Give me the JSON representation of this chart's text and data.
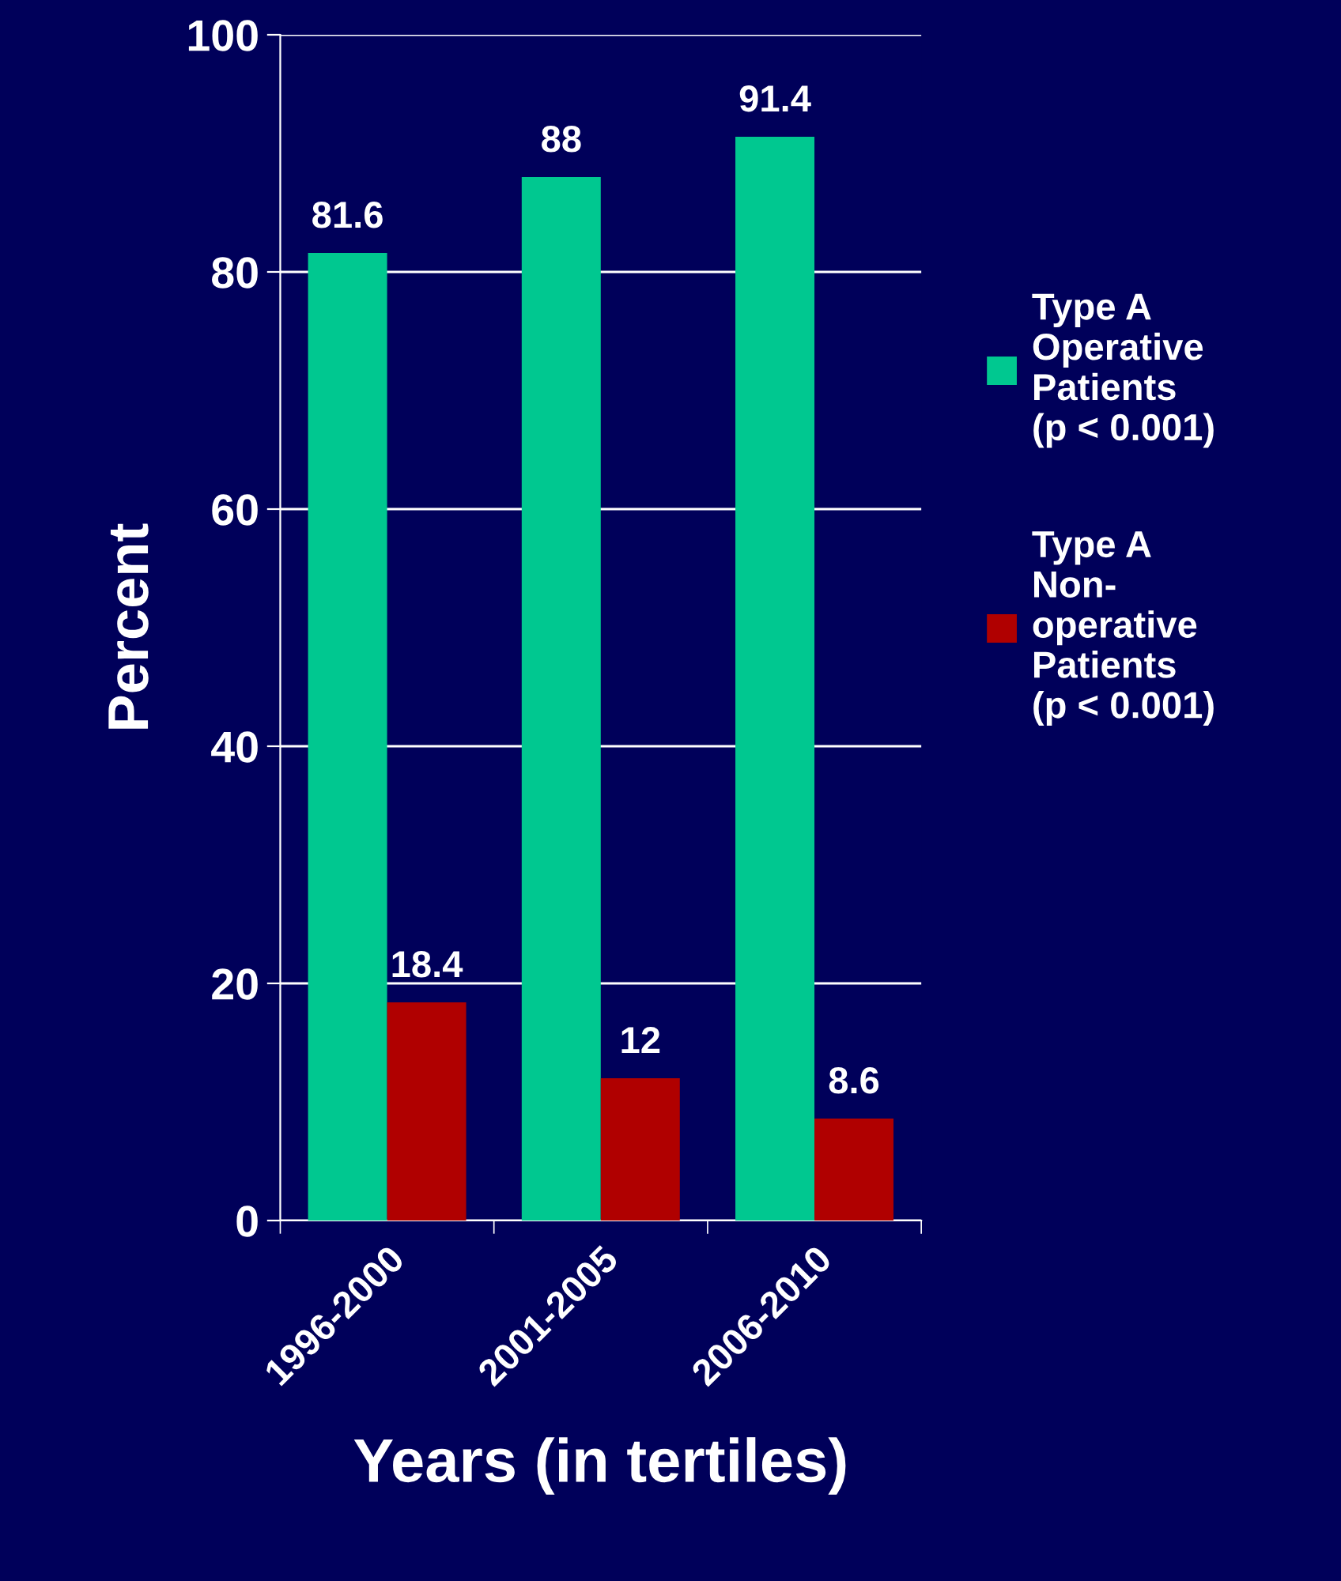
{
  "chart_data": {
    "type": "bar",
    "xlabel": "Years (in tertiles)",
    "ylabel": "Percent",
    "categories": [
      "1996-2000",
      "2001-2005",
      "2006-2010"
    ],
    "series": [
      {
        "name": "Type A\nOperative\nPatients\n(p < 0.001)",
        "color": "#00c890",
        "values": [
          81.6,
          88,
          91.4
        ]
      },
      {
        "name": "Type A\nNon-\noperative\nPatients\n(p < 0.001)",
        "color": "#b00000",
        "values": [
          18.4,
          12,
          8.6
        ]
      }
    ],
    "ylim": [
      0,
      100
    ],
    "yticks": [
      0,
      20,
      40,
      60,
      80,
      100
    ],
    "grid": "y",
    "legend": "right",
    "data_labels": true
  }
}
